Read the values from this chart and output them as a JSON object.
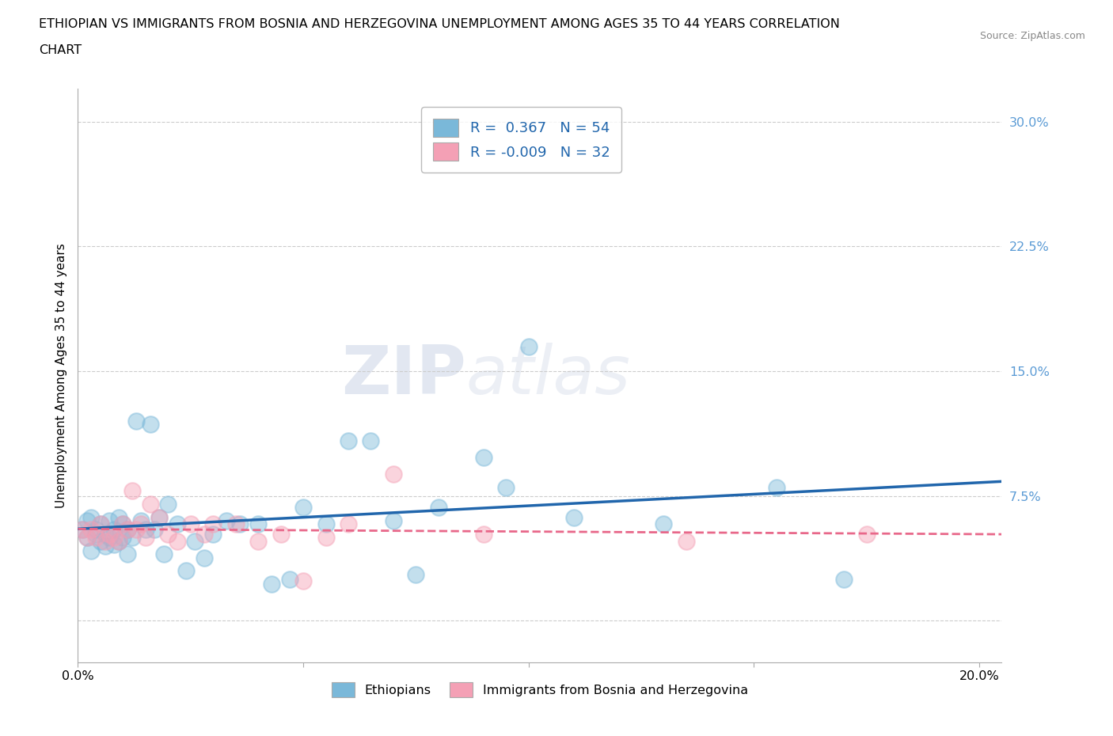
{
  "title_line1": "ETHIOPIAN VS IMMIGRANTS FROM BOSNIA AND HERZEGOVINA UNEMPLOYMENT AMONG AGES 35 TO 44 YEARS CORRELATION",
  "title_line2": "CHART",
  "source": "Source: ZipAtlas.com",
  "ylabel": "Unemployment Among Ages 35 to 44 years",
  "xlim": [
    0.0,
    0.205
  ],
  "ylim": [
    -0.025,
    0.32
  ],
  "yticks": [
    0.0,
    0.075,
    0.15,
    0.225,
    0.3
  ],
  "ytick_labels": [
    "",
    "7.5%",
    "15.0%",
    "22.5%",
    "30.0%"
  ],
  "xticks": [
    0.0,
    0.05,
    0.1,
    0.15,
    0.2
  ],
  "xtick_labels": [
    "0.0%",
    "",
    "",
    "",
    "20.0%"
  ],
  "bottom_legend_labels": [
    "Ethiopians",
    "Immigrants from Bosnia and Herzegovina"
  ],
  "blue_color": "#7ab8d9",
  "pink_color": "#f4a0b5",
  "blue_line_color": "#2166ac",
  "pink_line_color": "#e8688a",
  "watermark_zip": "ZIP",
  "watermark_atlas": "atlas",
  "title_fontsize": 11.5,
  "axis_label_fontsize": 11,
  "tick_fontsize": 11.5,
  "ethiopians_x": [
    0.001,
    0.002,
    0.002,
    0.003,
    0.003,
    0.004,
    0.004,
    0.005,
    0.005,
    0.006,
    0.006,
    0.007,
    0.007,
    0.008,
    0.008,
    0.009,
    0.009,
    0.01,
    0.01,
    0.011,
    0.011,
    0.012,
    0.013,
    0.014,
    0.015,
    0.016,
    0.017,
    0.018,
    0.019,
    0.02,
    0.022,
    0.024,
    0.026,
    0.028,
    0.03,
    0.033,
    0.036,
    0.04,
    0.043,
    0.047,
    0.05,
    0.055,
    0.06,
    0.065,
    0.07,
    0.075,
    0.08,
    0.09,
    0.095,
    0.1,
    0.11,
    0.13,
    0.155,
    0.17
  ],
  "ethiopians_y": [
    0.055,
    0.06,
    0.05,
    0.062,
    0.042,
    0.052,
    0.055,
    0.048,
    0.058,
    0.052,
    0.045,
    0.05,
    0.06,
    0.046,
    0.055,
    0.062,
    0.048,
    0.05,
    0.058,
    0.04,
    0.055,
    0.05,
    0.12,
    0.06,
    0.055,
    0.118,
    0.055,
    0.062,
    0.04,
    0.07,
    0.058,
    0.03,
    0.048,
    0.038,
    0.052,
    0.06,
    0.058,
    0.058,
    0.022,
    0.025,
    0.068,
    0.058,
    0.108,
    0.108,
    0.06,
    0.028,
    0.068,
    0.098,
    0.08,
    0.165,
    0.062,
    0.058,
    0.08,
    0.025
  ],
  "bosnia_x": [
    0.001,
    0.002,
    0.003,
    0.004,
    0.005,
    0.006,
    0.007,
    0.008,
    0.009,
    0.01,
    0.011,
    0.012,
    0.013,
    0.014,
    0.015,
    0.016,
    0.018,
    0.02,
    0.022,
    0.025,
    0.028,
    0.03,
    0.035,
    0.04,
    0.045,
    0.05,
    0.055,
    0.06,
    0.07,
    0.09,
    0.135,
    0.175
  ],
  "bosnia_y": [
    0.055,
    0.05,
    0.055,
    0.05,
    0.058,
    0.048,
    0.052,
    0.05,
    0.048,
    0.058,
    0.055,
    0.078,
    0.055,
    0.058,
    0.05,
    0.07,
    0.062,
    0.052,
    0.048,
    0.058,
    0.052,
    0.058,
    0.058,
    0.048,
    0.052,
    0.024,
    0.05,
    0.058,
    0.088,
    0.052,
    0.048,
    0.052
  ]
}
